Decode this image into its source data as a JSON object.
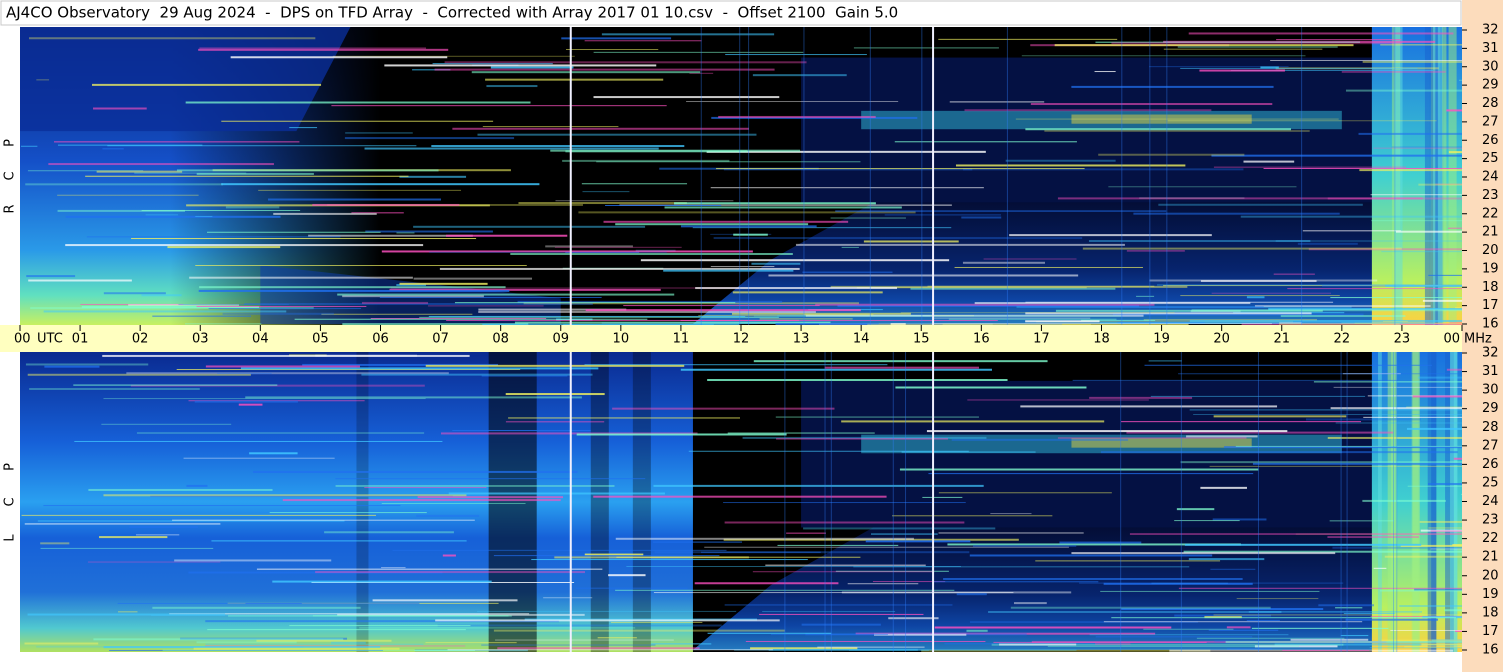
{
  "chart_data": {
    "type": "spectrogram",
    "title": "AJ4CO Observatory  29 Aug 2024  -  DPS on TFD Array  -  Corrected with Array 2017 01 10.csv  -  Offset 2100  Gain 5.0",
    "x_unit": "UTC",
    "y_unit": "MHz",
    "panels": [
      {
        "label": [
          "R",
          "C",
          "P"
        ]
      },
      {
        "label": [
          "L",
          "C",
          "P"
        ]
      }
    ],
    "xlim": [
      0,
      24
    ],
    "xticks": [
      {
        "value": 0,
        "label": "00"
      },
      {
        "value": 1,
        "label": "01"
      },
      {
        "value": 2,
        "label": "02"
      },
      {
        "value": 3,
        "label": "03"
      },
      {
        "value": 4,
        "label": "04"
      },
      {
        "value": 5,
        "label": "05"
      },
      {
        "value": 6,
        "label": "06"
      },
      {
        "value": 7,
        "label": "07"
      },
      {
        "value": 8,
        "label": "08"
      },
      {
        "value": 9,
        "label": "09"
      },
      10,
      11,
      12,
      13,
      14,
      15,
      16,
      17,
      18,
      19,
      20,
      21,
      22,
      23,
      {
        "value": 24,
        "label": "00"
      }
    ],
    "ylim": [
      16,
      32
    ],
    "yticks": [
      16,
      17,
      18,
      19,
      20,
      21,
      22,
      23,
      24,
      25,
      26,
      27,
      28,
      29,
      30,
      31,
      32
    ]
  }
}
